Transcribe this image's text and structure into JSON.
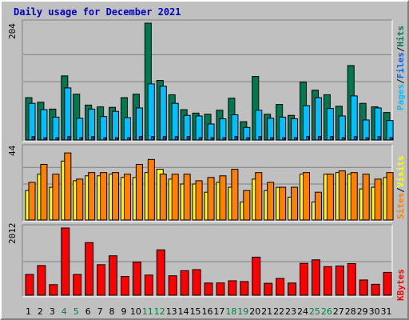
{
  "title": "Daily usage for December 2021",
  "colors": {
    "title": "#0000C0",
    "hits": "#007850",
    "files": "#00C0FF",
    "pages": "#0060FF",
    "visits": "#FFFF00",
    "sites": "#FF8000",
    "kbytes": "#FF0000",
    "weekend_label": "#008040",
    "weekday_label": "#000000"
  },
  "chart_data": [
    {
      "type": "bar",
      "panel": "hits-files-pages",
      "max_label": "204",
      "ylim": [
        0,
        204
      ],
      "legend": [
        {
          "label": "Pages",
          "color": "#00C0FF"
        },
        {
          "label": "/",
          "color": "#000000"
        },
        {
          "label": "Files",
          "color": "#0060FF"
        },
        {
          "label": "/",
          "color": "#000000"
        },
        {
          "label": "Hits",
          "color": "#007850"
        }
      ],
      "categories": [
        "1",
        "2",
        "3",
        "4",
        "5",
        "6",
        "7",
        "8",
        "9",
        "10",
        "11",
        "12",
        "13",
        "14",
        "15",
        "16",
        "17",
        "18",
        "19",
        "20",
        "21",
        "22",
        "23",
        "24",
        "25",
        "26",
        "27",
        "28",
        "29",
        "30",
        "31"
      ],
      "series": [
        {
          "name": "Hits",
          "values": [
            74,
            66,
            54,
            112,
            80,
            61,
            58,
            57,
            74,
            80,
            204,
            104,
            79,
            53,
            47,
            45,
            52,
            73,
            32,
            111,
            45,
            62,
            43,
            101,
            87,
            79,
            59,
            130,
            64,
            58,
            48
          ]
        },
        {
          "name": "Files",
          "values": [
            64,
            53,
            40,
            91,
            38,
            54,
            41,
            50,
            39,
            56,
            98,
            94,
            64,
            43,
            42,
            28,
            37,
            44,
            22,
            52,
            38,
            40,
            37,
            60,
            74,
            55,
            42,
            77,
            35,
            56,
            34
          ]
        },
        {
          "name": "Pages",
          "values": [
            6,
            4,
            4,
            6,
            4,
            6,
            4,
            4,
            4,
            6,
            6,
            6,
            6,
            6,
            4,
            4,
            4,
            6,
            4,
            6,
            4,
            4,
            4,
            6,
            6,
            6,
            4,
            6,
            4,
            6,
            4
          ]
        }
      ]
    },
    {
      "type": "bar",
      "panel": "visits-sites",
      "max_label": "44",
      "ylim": [
        0,
        44
      ],
      "legend": [
        {
          "label": "Sites",
          "color": "#FF8000"
        },
        {
          "label": "/",
          "color": "#000000"
        },
        {
          "label": "Visits",
          "color": "#FFFF00"
        }
      ],
      "categories": [
        "1",
        "2",
        "3",
        "4",
        "5",
        "6",
        "7",
        "8",
        "9",
        "10",
        "11",
        "12",
        "13",
        "14",
        "15",
        "16",
        "17",
        "18",
        "19",
        "20",
        "21",
        "22",
        "23",
        "24",
        "25",
        "26",
        "27",
        "28",
        "29",
        "30",
        "31"
      ],
      "series": [
        {
          "name": "Visits",
          "values": [
            18,
            28,
            20,
            36,
            24,
            27,
            27,
            28,
            26,
            26,
            29,
            31,
            25,
            22,
            22,
            17,
            23,
            20,
            11,
            25,
            18,
            20,
            14,
            28,
            11,
            28,
            29,
            28,
            19,
            20,
            26
          ]
        },
        {
          "name": "Sites",
          "values": [
            23,
            34,
            28,
            41,
            25,
            29,
            29,
            29,
            28,
            34,
            37,
            28,
            28,
            28,
            24,
            26,
            27,
            31,
            18,
            29,
            23,
            20,
            20,
            29,
            17,
            28,
            30,
            29,
            28,
            25,
            29
          ]
        }
      ]
    },
    {
      "type": "bar",
      "panel": "kbytes",
      "max_label": "2012",
      "ylim": [
        0,
        2012
      ],
      "legend": [
        {
          "label": "KBytes",
          "color": "#FF0000"
        }
      ],
      "categories": [
        "1",
        "2",
        "3",
        "4",
        "5",
        "6",
        "7",
        "8",
        "9",
        "10",
        "11",
        "12",
        "13",
        "14",
        "15",
        "16",
        "17",
        "18",
        "19",
        "20",
        "21",
        "22",
        "23",
        "24",
        "25",
        "26",
        "27",
        "28",
        "29",
        "30",
        "31"
      ],
      "series": [
        {
          "name": "KBytes",
          "values": [
            621,
            888,
            316,
            2012,
            621,
            1574,
            914,
            1180,
            561,
            992,
            603,
            1358,
            582,
            734,
            766,
            365,
            368,
            432,
            409,
            1140,
            357,
            501,
            365,
            954,
            1059,
            855,
            877,
            946,
            457,
            327,
            684
          ]
        }
      ]
    }
  ],
  "x_labels": [
    {
      "label": "1",
      "weekend": false
    },
    {
      "label": "2",
      "weekend": false
    },
    {
      "label": "3",
      "weekend": false
    },
    {
      "label": "4",
      "weekend": true
    },
    {
      "label": "5",
      "weekend": true
    },
    {
      "label": "6",
      "weekend": false
    },
    {
      "label": "7",
      "weekend": false
    },
    {
      "label": "8",
      "weekend": false
    },
    {
      "label": "9",
      "weekend": false
    },
    {
      "label": "10",
      "weekend": false
    },
    {
      "label": "11",
      "weekend": true
    },
    {
      "label": "12",
      "weekend": true
    },
    {
      "label": "13",
      "weekend": false
    },
    {
      "label": "14",
      "weekend": false
    },
    {
      "label": "15",
      "weekend": false
    },
    {
      "label": "16",
      "weekend": false
    },
    {
      "label": "17",
      "weekend": false
    },
    {
      "label": "18",
      "weekend": true
    },
    {
      "label": "19",
      "weekend": true
    },
    {
      "label": "20",
      "weekend": false
    },
    {
      "label": "21",
      "weekend": false
    },
    {
      "label": "22",
      "weekend": false
    },
    {
      "label": "23",
      "weekend": false
    },
    {
      "label": "24",
      "weekend": false
    },
    {
      "label": "25",
      "weekend": true
    },
    {
      "label": "26",
      "weekend": true
    },
    {
      "label": "27",
      "weekend": false
    },
    {
      "label": "28",
      "weekend": false
    },
    {
      "label": "29",
      "weekend": false
    },
    {
      "label": "30",
      "weekend": false
    },
    {
      "label": "31",
      "weekend": false
    }
  ]
}
